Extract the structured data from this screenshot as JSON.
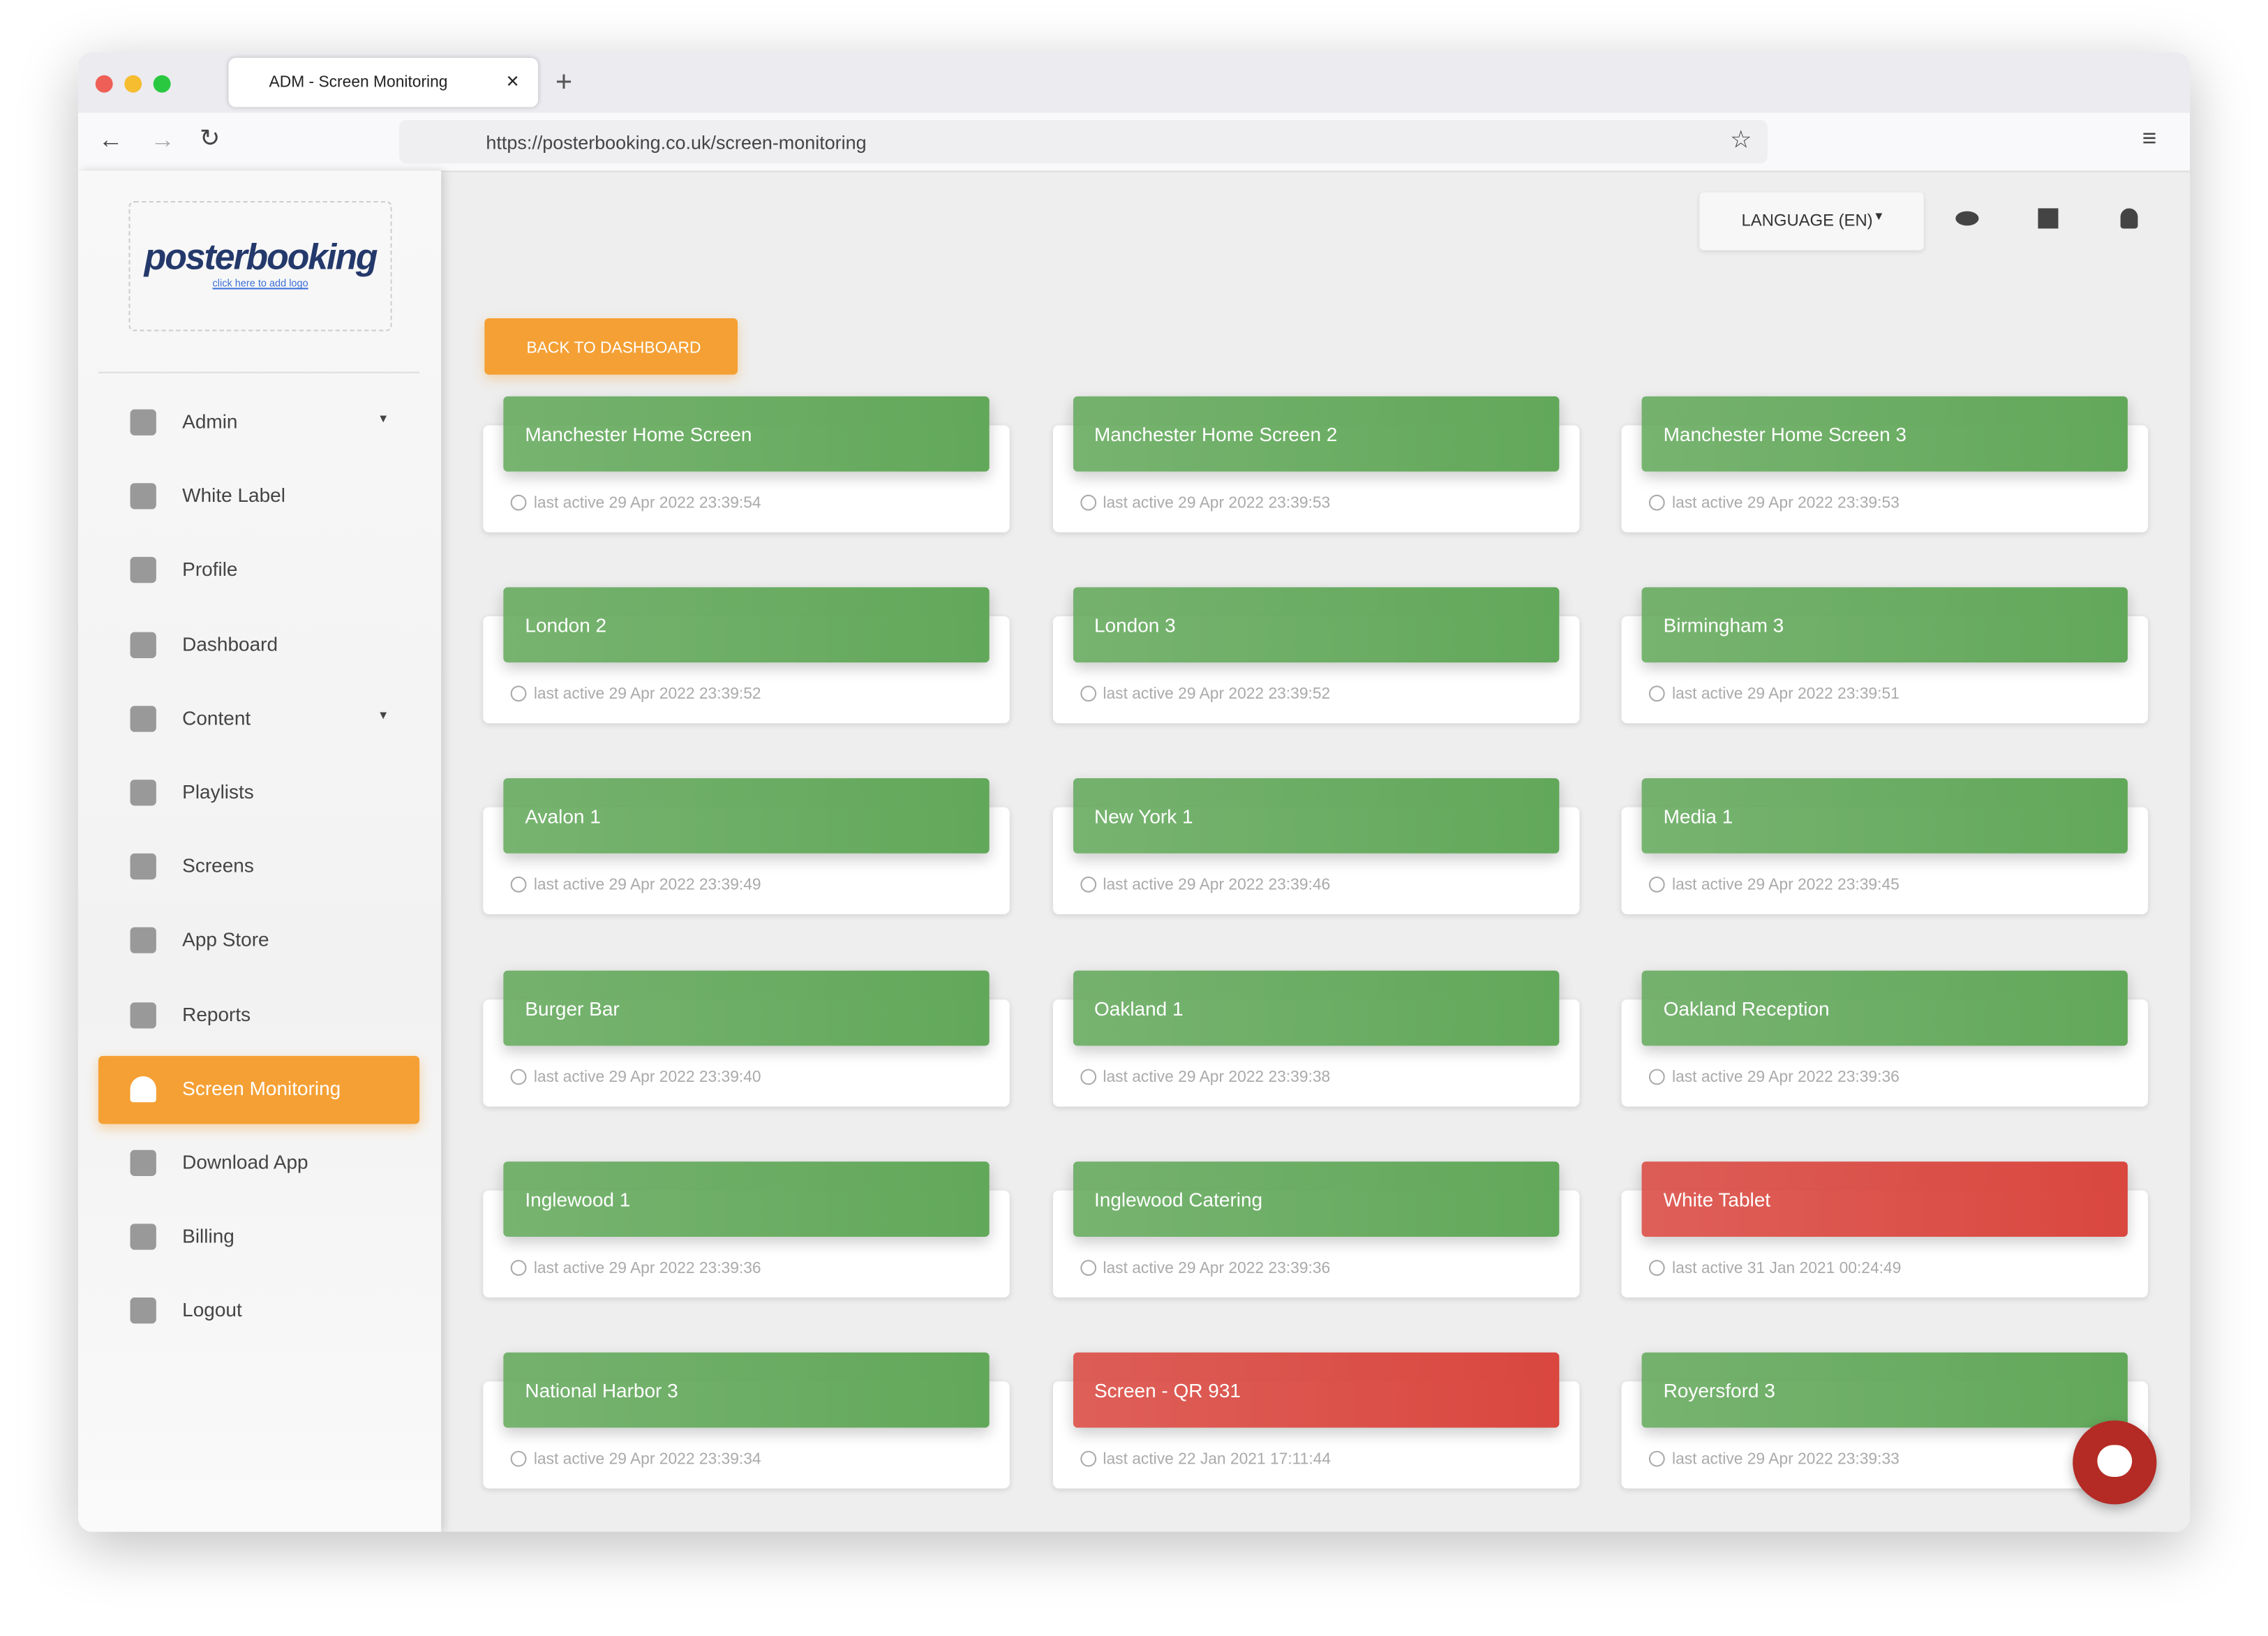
{
  "browser": {
    "tab_title": "ADM - Screen Monitoring",
    "url": "https://posterbooking.co.uk/screen-monitoring"
  },
  "sidebar": {
    "logo": "posterbooking",
    "logo_hint": "click here to add logo",
    "items": [
      {
        "label": "Admin",
        "dropdown": true
      },
      {
        "label": "White Label"
      },
      {
        "label": "Profile"
      },
      {
        "label": "Dashboard"
      },
      {
        "label": "Content",
        "dropdown": true
      },
      {
        "label": "Playlists"
      },
      {
        "label": "Screens"
      },
      {
        "label": "App Store"
      },
      {
        "label": "Reports"
      },
      {
        "label": "Screen Monitoring",
        "active": true
      },
      {
        "label": "Download App"
      },
      {
        "label": "Billing"
      },
      {
        "label": "Logout"
      }
    ]
  },
  "header": {
    "language": "LANGUAGE (EN)"
  },
  "back_button": "BACK TO DASHBOARD",
  "screens": [
    {
      "name": "Manchester Home Screen",
      "last_active": "last active 29 Apr 2022 23:39:54",
      "color": "#62a85a"
    },
    {
      "name": "Manchester Home Screen 2",
      "last_active": "last active 29 Apr 2022 23:39:53",
      "color": "#62a85a"
    },
    {
      "name": "Manchester Home Screen 3",
      "last_active": "last active 29 Apr 2022 23:39:53",
      "color": "#62a85a"
    },
    {
      "name": "London 2",
      "last_active": "last active 29 Apr 2022 23:39:52",
      "color": "#62a85a"
    },
    {
      "name": "London 3",
      "last_active": "last active 29 Apr 2022 23:39:52",
      "color": "#62a85a"
    },
    {
      "name": "Birmingham 3",
      "last_active": "last active 29 Apr 2022 23:39:51",
      "color": "#62a85a"
    },
    {
      "name": "Avalon 1",
      "last_active": "last active 29 Apr 2022 23:39:49",
      "color": "#62a85a"
    },
    {
      "name": "New York 1",
      "last_active": "last active 29 Apr 2022 23:39:46",
      "color": "#62a85a"
    },
    {
      "name": "Media 1",
      "last_active": "last active 29 Apr 2022 23:39:45",
      "color": "#62a85a"
    },
    {
      "name": "Burger Bar",
      "last_active": "last active 29 Apr 2022 23:39:40",
      "color": "#62a85a"
    },
    {
      "name": "Oakland 1",
      "last_active": "last active 29 Apr 2022 23:39:38",
      "color": "#62a85a"
    },
    {
      "name": "Oakland Reception",
      "last_active": "last active 29 Apr 2022 23:39:36",
      "color": "#62a85a"
    },
    {
      "name": "Inglewood 1",
      "last_active": "last active 29 Apr 2022 23:39:36",
      "color": "#62a85a"
    },
    {
      "name": "Inglewood Catering",
      "last_active": "last active 29 Apr 2022 23:39:36",
      "color": "#62a85a"
    },
    {
      "name": "White Tablet",
      "last_active": "last active 31 Jan 2021 00:24:49",
      "color": "#d9473f"
    },
    {
      "name": "National Harbor 3",
      "last_active": "last active 29 Apr 2022 23:39:34",
      "color": "#62a85a"
    },
    {
      "name": "Screen - QR 931",
      "last_active": "last active 22 Jan 2021 17:11:44",
      "color": "#d9473f"
    },
    {
      "name": "Royersford 3",
      "last_active": "last active 29 Apr 2022 23:39:33",
      "color": "#62a85a"
    }
  ]
}
